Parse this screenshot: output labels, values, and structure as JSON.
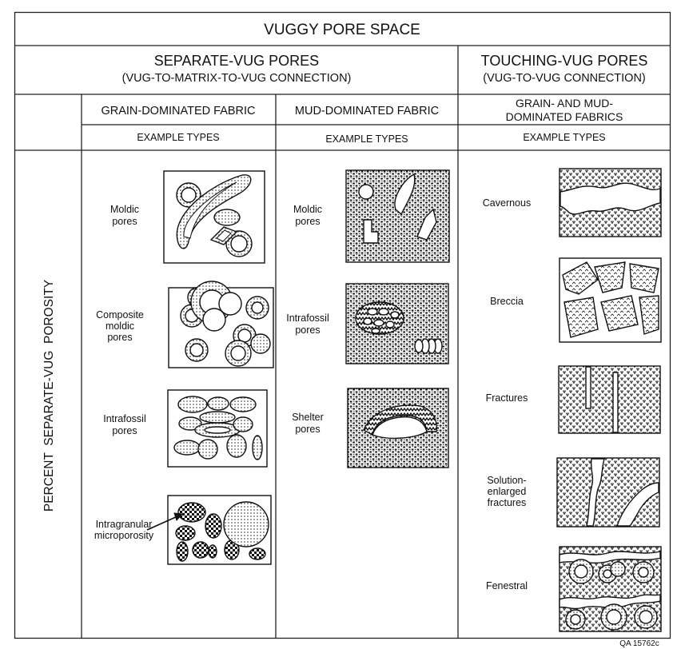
{
  "header": {
    "title": "VUGGY PORE SPACE",
    "separate_title": "SEPARATE-VUG PORES",
    "separate_subtitle": "(VUG-TO-MATRIX-TO-VUG CONNECTION)",
    "touching_title": "TOUCHING-VUG PORES",
    "touching_subtitle": "(VUG-TO-VUG CONNECTION)"
  },
  "columns": {
    "grain": "GRAIN-DOMINATED FABRIC",
    "mud": "MUD-DOMINATED FABRIC",
    "both_line1": "GRAIN- AND MUD-",
    "both_line2": "DOMINATED FABRICS",
    "example_types": "EXAMPLE TYPES"
  },
  "side_label": "PERCENT  SEPARATE-VUG  POROSITY",
  "grain_examples": [
    {
      "line1": "Moldic",
      "line2": "pores",
      "line3": ""
    },
    {
      "line1": "Composite",
      "line2": "moldic",
      "line3": "pores"
    },
    {
      "line1": "Intrafossil",
      "line2": "pores",
      "line3": ""
    },
    {
      "line1": "Intragranular",
      "line2": "microporosity",
      "line3": ""
    }
  ],
  "mud_examples": [
    {
      "line1": "Moldic",
      "line2": "pores"
    },
    {
      "line1": "Intrafossil",
      "line2": "pores"
    },
    {
      "line1": "Shelter",
      "line2": "pores"
    }
  ],
  "touching_examples": [
    {
      "line1": "Cavernous",
      "line2": "",
      "line3": ""
    },
    {
      "line1": "Breccia",
      "line2": "",
      "line3": ""
    },
    {
      "line1": "Fractures",
      "line2": "",
      "line3": ""
    },
    {
      "line1": "Solution-",
      "line2": "enlarged",
      "line3": "fractures"
    },
    {
      "line1": "Fenestral",
      "line2": "",
      "line3": ""
    }
  ],
  "figure_id": "QA 15762c"
}
